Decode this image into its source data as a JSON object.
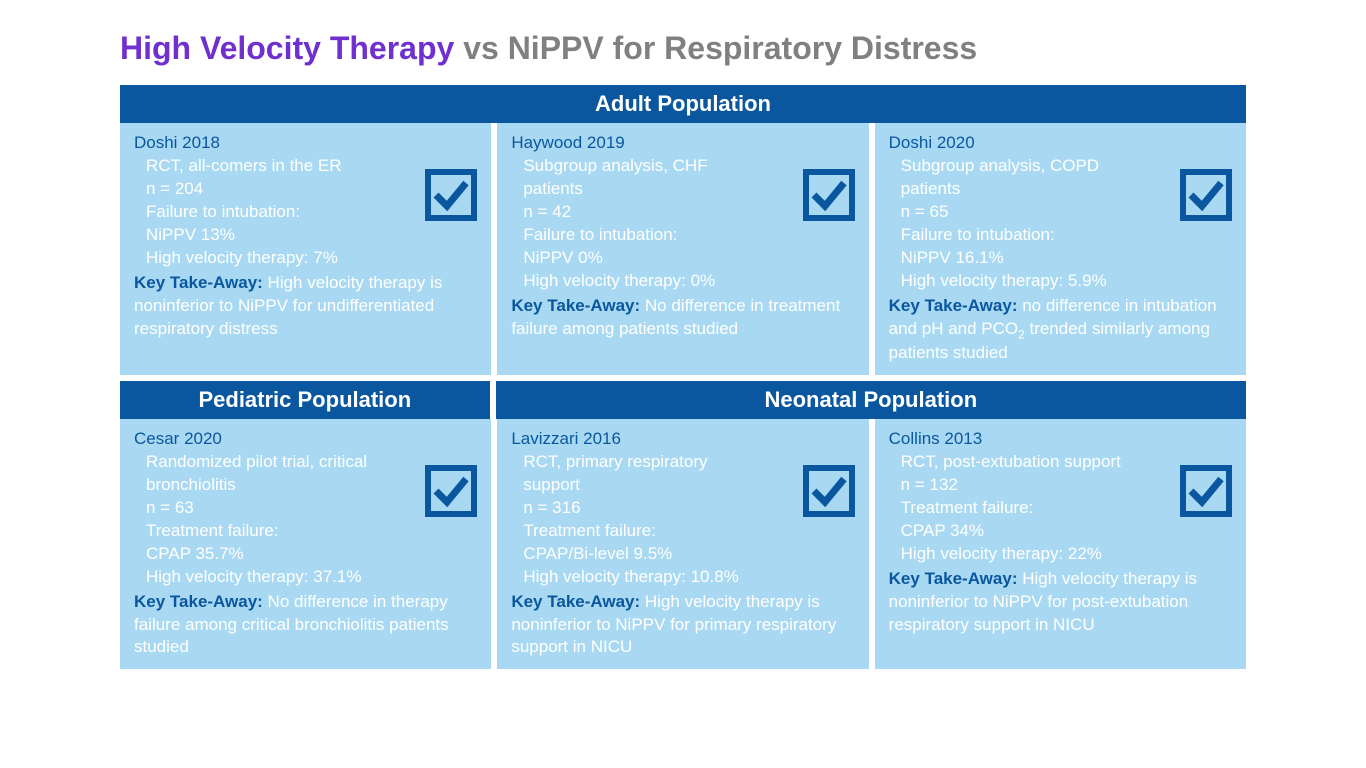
{
  "colors": {
    "accent_purple": "#7030d0",
    "title_gray": "#808080",
    "header_bg": "#0a57a0",
    "card_bg": "#a9d9f2",
    "card_text_white": "#ffffff",
    "check_stroke": "#0a57a0"
  },
  "title": {
    "highlight": "High Velocity Therapy",
    "rest": " vs NiPPV for Respiratory Distress"
  },
  "adult_header": "Adult Population",
  "pediatric_header": "Pediatric Population",
  "neonatal_header": "Neonatal Population",
  "adult": [
    {
      "name": "Doshi 2018",
      "lines": [
        "RCT, all-comers in the ER",
        "n = 204",
        "Failure to intubation:",
        "NiPPV 13%",
        "High velocity therapy: 7%"
      ],
      "takeaway_label": "Key Take-Away:",
      "takeaway": " High velocity therapy is noninferior to NiPPV for undifferentiated respiratory distress"
    },
    {
      "name": "Haywood 2019",
      "lines": [
        "Subgroup analysis, CHF patients",
        "n = 42",
        "Failure to intubation:",
        "NiPPV 0%",
        "High velocity therapy: 0%"
      ],
      "takeaway_label": "Key Take-Away:",
      "takeaway": " No difference in treatment failure among patients studied"
    },
    {
      "name": "Doshi 2020",
      "lines": [
        "Subgroup analysis, COPD patients",
        "n = 65",
        "Failure to intubation:",
        "NiPPV 16.1%",
        "High velocity therapy: 5.9%"
      ],
      "takeaway_label": "Key Take-Away:",
      "takeaway_html": " no difference in intubation and pH and PCO<sub>2</sub> trended similarly among patients studied"
    }
  ],
  "bottom": [
    {
      "name": "Cesar 2020",
      "lines": [
        "Randomized pilot trial, critical bronchiolitis",
        "n = 63",
        "Treatment failure:",
        "CPAP 35.7%",
        "High velocity therapy: 37.1%"
      ],
      "takeaway_label": "Key Take-Away:",
      "takeaway": " No difference in therapy failure among critical bronchiolitis patients studied"
    },
    {
      "name": "Lavizzari 2016",
      "lines": [
        "RCT, primary respiratory support",
        "n = 316",
        "Treatment failure:",
        "CPAP/Bi-level 9.5%",
        "High velocity therapy: 10.8%"
      ],
      "takeaway_label": "Key Take-Away:",
      "takeaway": " High velocity therapy is noninferior to NiPPV for primary respiratory support in NICU"
    },
    {
      "name": "Collins 2013",
      "lines": [
        "RCT, post-extubation support",
        "n = 132",
        "Treatment failure:",
        "CPAP 34%",
        "High velocity therapy: 22%"
      ],
      "takeaway_label": "Key Take-Away:",
      "takeaway": " High velocity therapy is noninferior to NiPPV for post-extubation respiratory support in NICU"
    }
  ],
  "check_icon": {
    "stroke_width": 6
  }
}
